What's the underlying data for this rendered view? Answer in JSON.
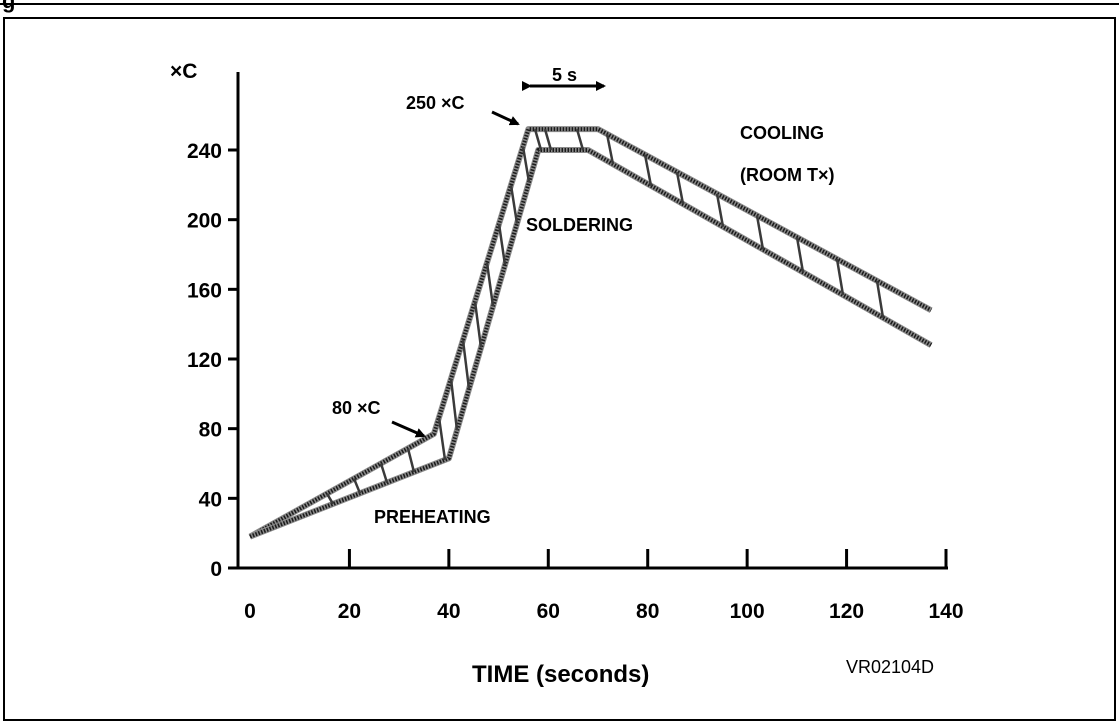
{
  "title_partial": "g",
  "figure_code": "VR02104D",
  "chart_data": {
    "type": "line",
    "xlabel": "TIME (seconds)",
    "ylabel": "×C",
    "xlim": [
      0,
      140
    ],
    "ylim": [
      0,
      260
    ],
    "x_ticks": [
      "0",
      "20",
      "40",
      "60",
      "80",
      "100",
      "120",
      "140"
    ],
    "y_ticks": [
      "0",
      "40",
      "80",
      "120",
      "160",
      "200",
      "240"
    ],
    "x_tick_values": [
      0,
      20,
      40,
      60,
      80,
      100,
      120,
      140
    ],
    "y_tick_values": [
      0,
      40,
      80,
      120,
      160,
      200,
      240
    ],
    "series": [
      {
        "points": [
          [
            0,
            18
          ],
          [
            37,
            77
          ],
          [
            56,
            252
          ],
          [
            70,
            252
          ],
          [
            137,
            148
          ]
        ]
      },
      {
        "points": [
          [
            0,
            18
          ],
          [
            40,
            63
          ],
          [
            58,
            240
          ],
          [
            68,
            240
          ],
          [
            137,
            128
          ]
        ]
      }
    ],
    "annotations": {
      "preheating": "PREHEATING",
      "soldering": "SOLDERING",
      "cooling": "COOLING",
      "room": "(ROOM T×)",
      "label_80": "80 ×C",
      "label_250": "250 ×C",
      "duration": "5 s"
    }
  }
}
